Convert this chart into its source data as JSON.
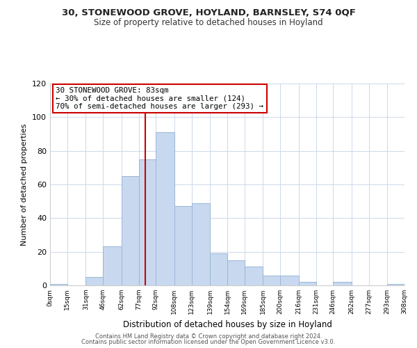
{
  "title1": "30, STONEWOOD GROVE, HOYLAND, BARNSLEY, S74 0QF",
  "title2": "Size of property relative to detached houses in Hoyland",
  "xlabel": "Distribution of detached houses by size in Hoyland",
  "ylabel": "Number of detached properties",
  "bar_color": "#c8d9ef",
  "bar_edge_color": "#9ab5d8",
  "bin_labels": [
    "0sqm",
    "15sqm",
    "31sqm",
    "46sqm",
    "62sqm",
    "77sqm",
    "92sqm",
    "108sqm",
    "123sqm",
    "139sqm",
    "154sqm",
    "169sqm",
    "185sqm",
    "200sqm",
    "216sqm",
    "231sqm",
    "246sqm",
    "262sqm",
    "277sqm",
    "293sqm",
    "308sqm"
  ],
  "bin_edges": [
    0,
    15,
    31,
    46,
    62,
    77,
    92,
    108,
    123,
    139,
    154,
    169,
    185,
    200,
    216,
    231,
    246,
    262,
    277,
    293,
    308
  ],
  "counts": [
    1,
    0,
    5,
    23,
    65,
    75,
    91,
    47,
    49,
    19,
    15,
    11,
    6,
    6,
    2,
    0,
    2,
    0,
    0,
    1
  ],
  "property_size": 83,
  "property_name": "30 STONEWOOD GROVE",
  "property_sqm": "83sqm",
  "pct_smaller": 30,
  "n_smaller": 124,
  "pct_larger_semi": 70,
  "n_larger_semi": 293,
  "vline_color": "#cc0000",
  "annotation_box_edge": "#cc0000",
  "ylim": [
    0,
    120
  ],
  "yticks": [
    0,
    20,
    40,
    60,
    80,
    100,
    120
  ],
  "footer1": "Contains HM Land Registry data © Crown copyright and database right 2024.",
  "footer2": "Contains public sector information licensed under the Open Government Licence v3.0."
}
